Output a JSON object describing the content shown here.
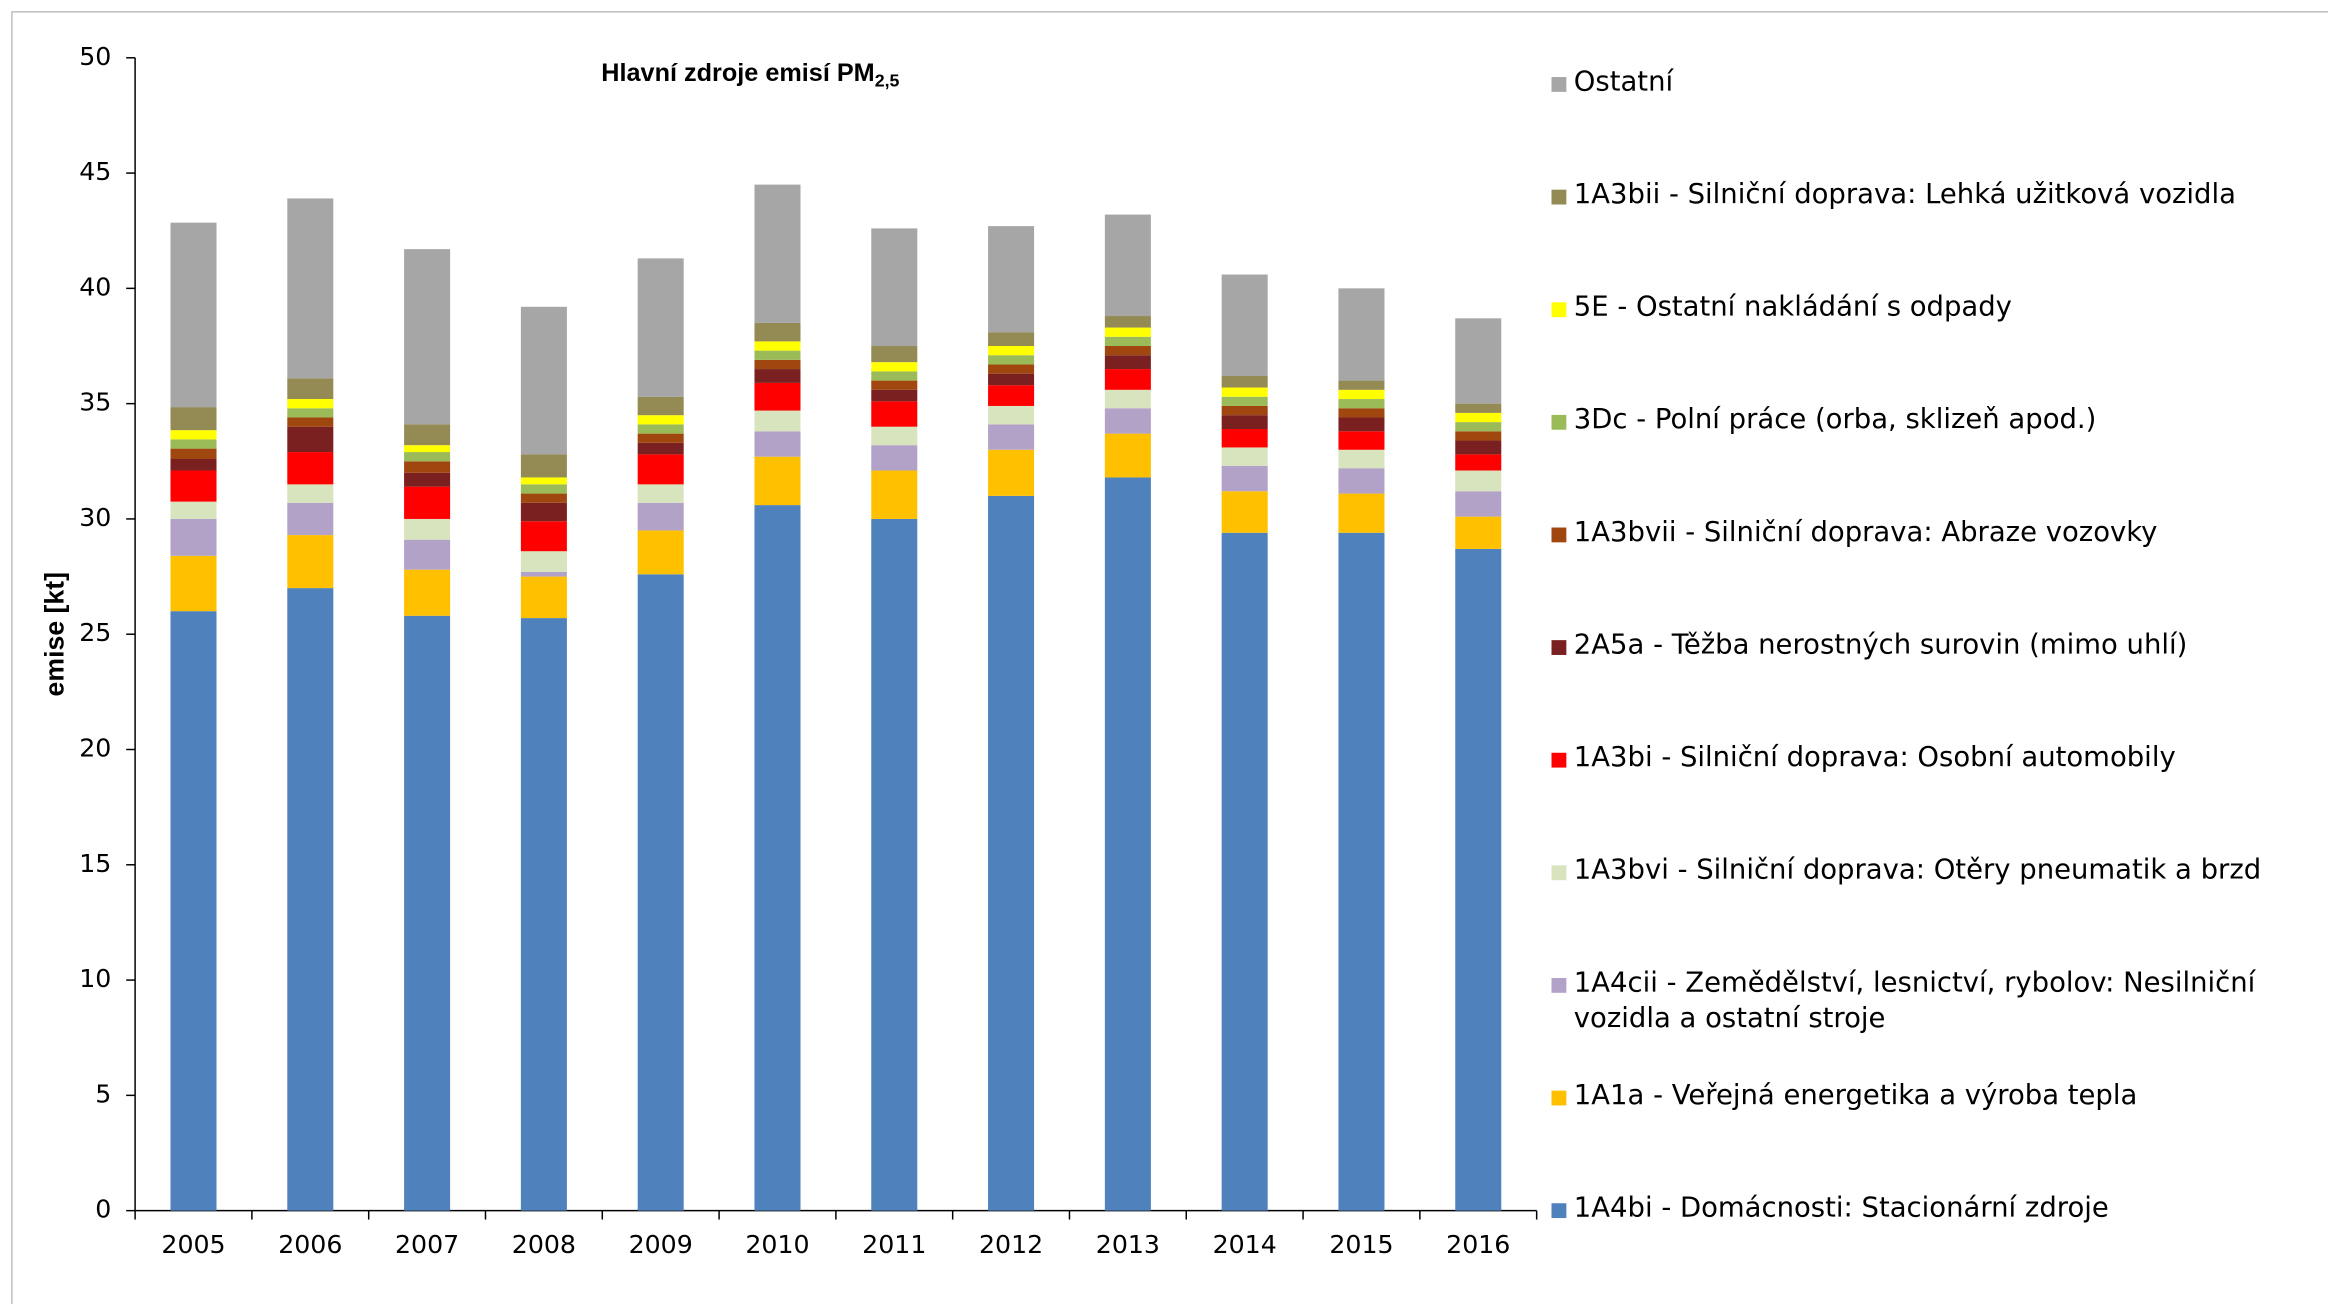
{
  "chart_data": {
    "type": "stacked_bar",
    "title": "Hlavní zdroje emisí PM",
    "title_subscript": "2,5",
    "y_label": "emise [kt]",
    "categories": [
      "2005",
      "2006",
      "2007",
      "2008",
      "2009",
      "2010",
      "2011",
      "2012",
      "2013",
      "2014",
      "2015",
      "2016"
    ],
    "ylim": [
      0,
      50
    ],
    "yticks": [
      0,
      5,
      10,
      15,
      20,
      25,
      30,
      35,
      40,
      45,
      50
    ],
    "grid": false,
    "legend": "right",
    "series": [
      {
        "name": "1A4bi - Domácnosti: Stacionární zdroje",
        "color": "#4f81bd",
        "values": [
          26.0,
          27.0,
          25.8,
          25.7,
          27.6,
          30.6,
          30.0,
          31.0,
          31.8,
          29.4,
          29.4,
          28.7
        ]
      },
      {
        "name": "1A1a - Veřejná energetika a výroba tepla",
        "color": "#ffc000",
        "values": [
          2.4,
          2.3,
          2.0,
          1.8,
          1.9,
          2.1,
          2.1,
          2.0,
          1.9,
          1.8,
          1.7,
          1.4
        ]
      },
      {
        "name": "1A4cii - Zemědělství, lesnictví, rybolov: Nesilniční vozidla a ostatní stroje",
        "color": "#b3a2c7",
        "values": [
          1.6,
          1.4,
          1.3,
          0.2,
          1.2,
          1.1,
          1.1,
          1.1,
          1.1,
          1.1,
          1.1,
          1.1
        ]
      },
      {
        "name": "1A3bvi - Silniční doprava: Otěry pneumatik a brzd",
        "color": "#d7e4bd",
        "values": [
          0.75,
          0.8,
          0.9,
          0.9,
          0.8,
          0.9,
          0.8,
          0.8,
          0.8,
          0.8,
          0.8,
          0.9
        ]
      },
      {
        "name": "1A3bi - Silniční doprava: Osobní automobily",
        "color": "#ff0000",
        "values": [
          1.35,
          1.4,
          1.4,
          1.3,
          1.3,
          1.2,
          1.1,
          0.9,
          0.9,
          0.8,
          0.8,
          0.7
        ]
      },
      {
        "name": "2A5a - Těžba nerostných surovin (mimo uhlí)",
        "color": "#7b2021",
        "values": [
          0.5,
          1.1,
          0.6,
          0.8,
          0.5,
          0.6,
          0.5,
          0.5,
          0.6,
          0.6,
          0.6,
          0.6
        ]
      },
      {
        "name": "1A3bvii - Silniční doprava: Abraze vozovky",
        "color": "#a0460f",
        "values": [
          0.45,
          0.4,
          0.5,
          0.4,
          0.4,
          0.4,
          0.4,
          0.4,
          0.4,
          0.4,
          0.4,
          0.4
        ]
      },
      {
        "name": "3Dc - Polní práce (orba, sklizeň apod.)",
        "color": "#9bbb59",
        "values": [
          0.4,
          0.4,
          0.4,
          0.4,
          0.4,
          0.4,
          0.4,
          0.4,
          0.4,
          0.4,
          0.4,
          0.4
        ]
      },
      {
        "name": "5E - Ostatní nakládání s odpady",
        "color": "#ffff00",
        "values": [
          0.4,
          0.4,
          0.3,
          0.3,
          0.4,
          0.4,
          0.4,
          0.4,
          0.4,
          0.4,
          0.4,
          0.4
        ]
      },
      {
        "name": "1A3bii - Silniční doprava: Lehká užitková vozidla",
        "color": "#948a54",
        "values": [
          1.0,
          0.9,
          0.9,
          1.0,
          0.8,
          0.8,
          0.7,
          0.6,
          0.5,
          0.5,
          0.4,
          0.4
        ]
      },
      {
        "name": "Ostatní",
        "color": "#a6a6a6",
        "values": [
          8.0,
          7.8,
          7.6,
          6.4,
          6.0,
          6.0,
          5.1,
          4.6,
          4.4,
          4.4,
          4.0,
          3.7
        ]
      }
    ]
  }
}
